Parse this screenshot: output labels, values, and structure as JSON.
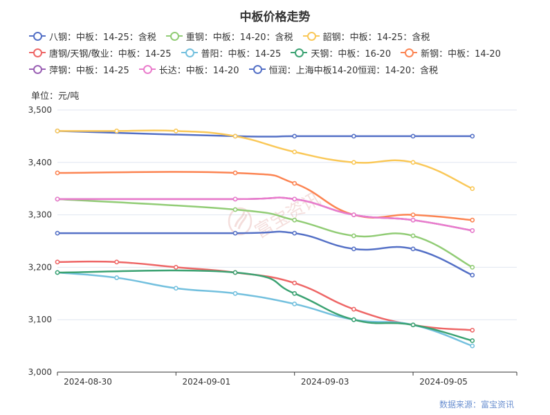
{
  "chart_data": {
    "type": "line",
    "title": "中板价格走势",
    "unit_label": "单位：元/吨",
    "source": "数据来源：富宝资讯",
    "watermark": "富宝资讯",
    "x_tick_labels": [
      "2024-08-30",
      "2024-09-01",
      "2024-09-03",
      "2024-09-05"
    ],
    "x_tick_positions": [
      0,
      2,
      4,
      6
    ],
    "x": [
      0,
      1,
      2,
      3,
      4,
      5,
      6,
      7
    ],
    "xlim": [
      0,
      7.75
    ],
    "ylim": [
      3000,
      3500
    ],
    "y_ticks": [
      3000,
      3100,
      3200,
      3300,
      3400,
      3500
    ],
    "y_tick_labels": [
      "3,000",
      "3,100",
      "3,200",
      "3,300",
      "3,400",
      "3,500"
    ],
    "grid": true,
    "legend_position": "top",
    "series": [
      {
        "name": "八钢：中板：14-25：含税",
        "color": "#5470c6",
        "values": [
          3460,
          null,
          null,
          3450,
          3450,
          3450,
          3450,
          3450
        ]
      },
      {
        "name": "重钢：中板：14-20：含税",
        "color": "#91cc75",
        "values": [
          3330,
          null,
          null,
          3310,
          3290,
          3260,
          3260,
          3200
        ]
      },
      {
        "name": "韶钢：中板：14-25：含税",
        "color": "#fac858",
        "values": [
          3460,
          3460,
          3460,
          3450,
          3420,
          3400,
          3400,
          3350
        ]
      },
      {
        "name": "唐钢/天钢/敬业：中板：14-25",
        "color": "#ee6666",
        "values": [
          3210,
          3210,
          3200,
          3190,
          3170,
          3120,
          3090,
          3080
        ]
      },
      {
        "name": "普阳：中板：14-25",
        "color": "#73c0de",
        "values": [
          3190,
          3180,
          3160,
          3150,
          3130,
          3100,
          3090,
          3050
        ]
      },
      {
        "name": "天钢：中板：16-20",
        "color": "#3ba272",
        "values": [
          3190,
          null,
          null,
          3190,
          3150,
          3100,
          3090,
          3060
        ]
      },
      {
        "name": "新钢：中板：14-20",
        "color": "#fc8452",
        "values": [
          3380,
          null,
          null,
          3380,
          3360,
          3300,
          3300,
          3290
        ]
      },
      {
        "name": "萍钢：中板：14-25",
        "color": "#9a60b4",
        "values": [
          3330,
          null,
          null,
          3330,
          3330,
          3300,
          3290,
          3270
        ]
      },
      {
        "name": "长达：中板：14-20",
        "color": "#ea7ccc",
        "values": [
          3330,
          null,
          null,
          3330,
          3330,
          3300,
          3290,
          3270
        ]
      },
      {
        "name": "恒润：上海中板14-20恒润：14-20：含税",
        "color": "#5470c6",
        "values": [
          3265,
          null,
          null,
          3265,
          3265,
          3235,
          3235,
          3185
        ]
      }
    ]
  }
}
